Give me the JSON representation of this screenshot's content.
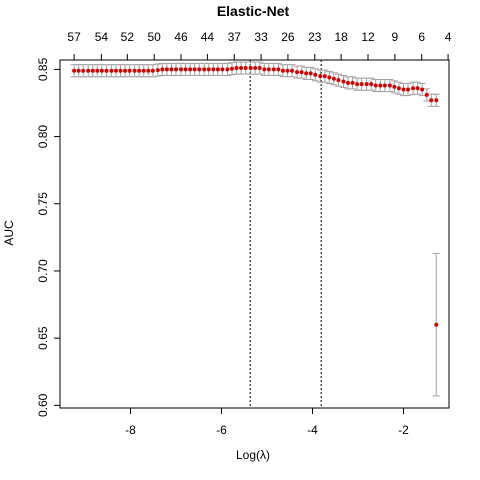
{
  "chart_data": {
    "type": "scatter",
    "title": "Elastic-Net",
    "xlabel": "Log(λ)",
    "ylabel": "AUC",
    "xlim": [
      -9.55,
      -1.0
    ],
    "ylim": [
      0.598,
      0.857
    ],
    "x_ticks": [
      {
        "value": -8,
        "label": "-8"
      },
      {
        "value": -6,
        "label": "-6"
      },
      {
        "value": -4,
        "label": "-4"
      },
      {
        "value": -2,
        "label": "-2"
      }
    ],
    "y_ticks": [
      {
        "value": 0.6,
        "label": "0.60"
      },
      {
        "value": 0.65,
        "label": "0.65"
      },
      {
        "value": 0.7,
        "label": "0.70"
      },
      {
        "value": 0.75,
        "label": "0.75"
      },
      {
        "value": 0.8,
        "label": "0.80"
      },
      {
        "value": 0.85,
        "label": "0.85"
      }
    ],
    "top_ticks": [
      {
        "value": -9.24,
        "label": "57"
      },
      {
        "value": -8.64,
        "label": "54"
      },
      {
        "value": -8.07,
        "label": "52"
      },
      {
        "value": -7.48,
        "label": "50"
      },
      {
        "value": -6.89,
        "label": "46"
      },
      {
        "value": -6.31,
        "label": "44"
      },
      {
        "value": -5.72,
        "label": "37"
      },
      {
        "value": -5.13,
        "label": "33"
      },
      {
        "value": -4.54,
        "label": "26"
      },
      {
        "value": -3.95,
        "label": "23"
      },
      {
        "value": -3.37,
        "label": "18"
      },
      {
        "value": -2.78,
        "label": "12"
      },
      {
        "value": -2.19,
        "label": "9"
      },
      {
        "value": -1.6,
        "label": "6"
      },
      {
        "value": -1.02,
        "label": "4"
      }
    ],
    "vlines": [
      -5.37,
      -3.81
    ],
    "grid": false,
    "series": [
      {
        "color": "#cc0000",
        "errorbar_color": "#a0a0a0",
        "x": [
          -9.24,
          -9.14,
          -9.04,
          -8.93,
          -8.83,
          -8.73,
          -8.63,
          -8.53,
          -8.42,
          -8.32,
          -8.22,
          -8.12,
          -8.02,
          -7.91,
          -7.81,
          -7.71,
          -7.61,
          -7.51,
          -7.4,
          -7.3,
          -7.2,
          -7.1,
          -7.0,
          -6.89,
          -6.79,
          -6.69,
          -6.59,
          -6.49,
          -6.38,
          -6.28,
          -6.18,
          -6.08,
          -5.98,
          -5.87,
          -5.77,
          -5.67,
          -5.57,
          -5.47,
          -5.36,
          -5.26,
          -5.16,
          -5.06,
          -4.96,
          -4.85,
          -4.75,
          -4.65,
          -4.55,
          -4.45,
          -4.34,
          -4.24,
          -4.14,
          -4.04,
          -3.94,
          -3.83,
          -3.73,
          -3.63,
          -3.53,
          -3.43,
          -3.32,
          -3.22,
          -3.12,
          -3.02,
          -2.92,
          -2.81,
          -2.71,
          -2.61,
          -2.51,
          -2.41,
          -2.3,
          -2.2,
          -2.1,
          -2.0,
          -1.9,
          -1.79,
          -1.69,
          -1.59,
          -1.49,
          -1.39,
          -1.28
        ],
        "y": [
          0.849,
          0.849,
          0.849,
          0.849,
          0.849,
          0.849,
          0.849,
          0.849,
          0.849,
          0.849,
          0.849,
          0.849,
          0.849,
          0.849,
          0.849,
          0.849,
          0.849,
          0.849,
          0.8495,
          0.85,
          0.85,
          0.85,
          0.85,
          0.85,
          0.85,
          0.85,
          0.85,
          0.85,
          0.85,
          0.85,
          0.85,
          0.85,
          0.85,
          0.85,
          0.8505,
          0.851,
          0.851,
          0.851,
          0.851,
          0.851,
          0.851,
          0.85,
          0.85,
          0.85,
          0.85,
          0.849,
          0.849,
          0.849,
          0.848,
          0.848,
          0.847,
          0.847,
          0.846,
          0.845,
          0.845,
          0.844,
          0.843,
          0.842,
          0.841,
          0.84,
          0.84,
          0.839,
          0.839,
          0.839,
          0.839,
          0.838,
          0.838,
          0.838,
          0.838,
          0.837,
          0.836,
          0.835,
          0.835,
          0.836,
          0.836,
          0.835,
          0.831,
          0.827,
          0.827
        ],
        "err": [
          0.0045,
          0.0045,
          0.0045,
          0.0045,
          0.0045,
          0.0045,
          0.0045,
          0.0045,
          0.0045,
          0.0045,
          0.0045,
          0.0045,
          0.0045,
          0.0045,
          0.0045,
          0.0045,
          0.0045,
          0.0045,
          0.0045,
          0.0045,
          0.0045,
          0.0045,
          0.0045,
          0.0045,
          0.0045,
          0.0045,
          0.0045,
          0.0045,
          0.0045,
          0.0045,
          0.0045,
          0.0045,
          0.0045,
          0.0045,
          0.0045,
          0.0045,
          0.0045,
          0.0045,
          0.0045,
          0.0045,
          0.0045,
          0.0045,
          0.0045,
          0.0045,
          0.0045,
          0.0045,
          0.0045,
          0.0045,
          0.0045,
          0.0045,
          0.0045,
          0.0045,
          0.0045,
          0.0045,
          0.0045,
          0.0045,
          0.0045,
          0.0045,
          0.0045,
          0.0045,
          0.0045,
          0.0045,
          0.0045,
          0.0045,
          0.0045,
          0.0045,
          0.0045,
          0.0045,
          0.0045,
          0.0045,
          0.0045,
          0.0045,
          0.0045,
          0.0045,
          0.0045,
          0.0045,
          0.0045,
          0.0045,
          0.0045
        ]
      },
      {
        "color": "#cc0000",
        "errorbar_color": "#a0a0a0",
        "x": [
          -1.28
        ],
        "y": [
          0.66
        ],
        "err": [
          0.053
        ]
      }
    ]
  }
}
